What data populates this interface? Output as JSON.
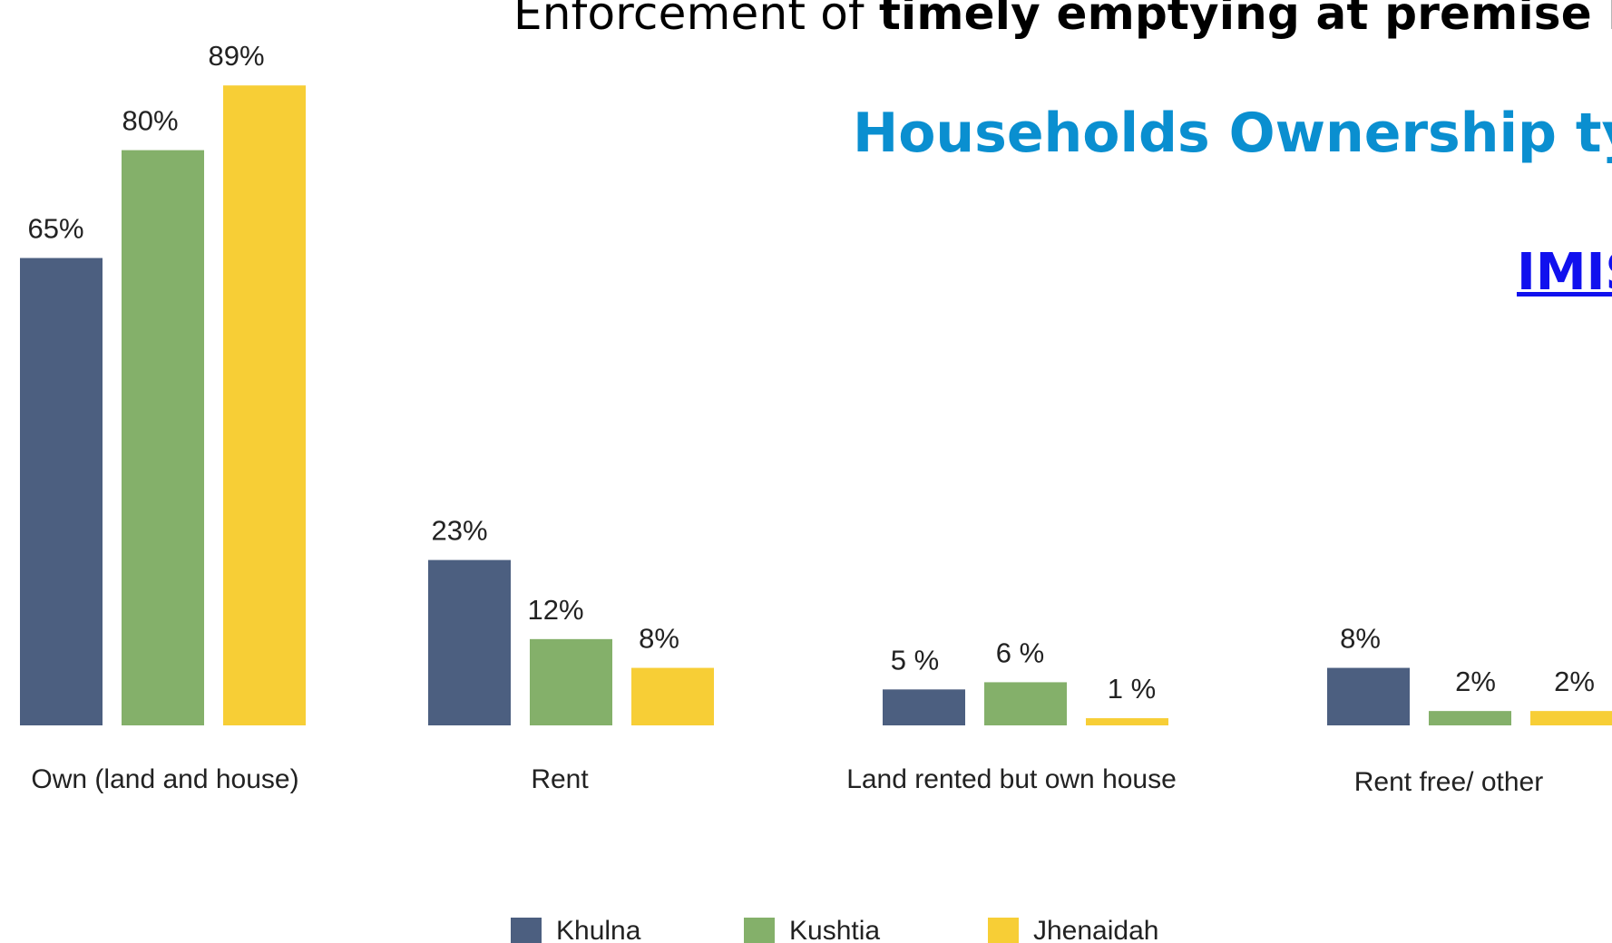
{
  "slide": {
    "heading_regular": "Enforcement of ",
    "heading_bold": "timely emptying at premise le",
    "chart_title": "Households Ownership ty",
    "link_text": "IMIS"
  },
  "chart_data": {
    "type": "bar",
    "title": "",
    "categories": [
      "Own (land and house)",
      "Rent",
      "Land rented but own house",
      "Rent free/ other"
    ],
    "series": [
      {
        "name": "Khulna",
        "values": [
          65,
          23,
          5,
          8
        ],
        "labels": [
          "65%",
          "23%",
          "5 %",
          "8%"
        ],
        "color": "#4c5f80"
      },
      {
        "name": "Kushtia",
        "values": [
          80,
          12,
          6,
          2
        ],
        "labels": [
          "80%",
          "12%",
          "6 %",
          "2%"
        ],
        "color": "#84b06a"
      },
      {
        "name": "Jhenaidah",
        "values": [
          89,
          8,
          1,
          2
        ],
        "labels": [
          "89%",
          "8%",
          "1 %",
          "2%"
        ],
        "color": "#f7ce36"
      }
    ],
    "ylim": [
      0,
      100
    ],
    "grid": false,
    "legend_position": "bottom"
  }
}
